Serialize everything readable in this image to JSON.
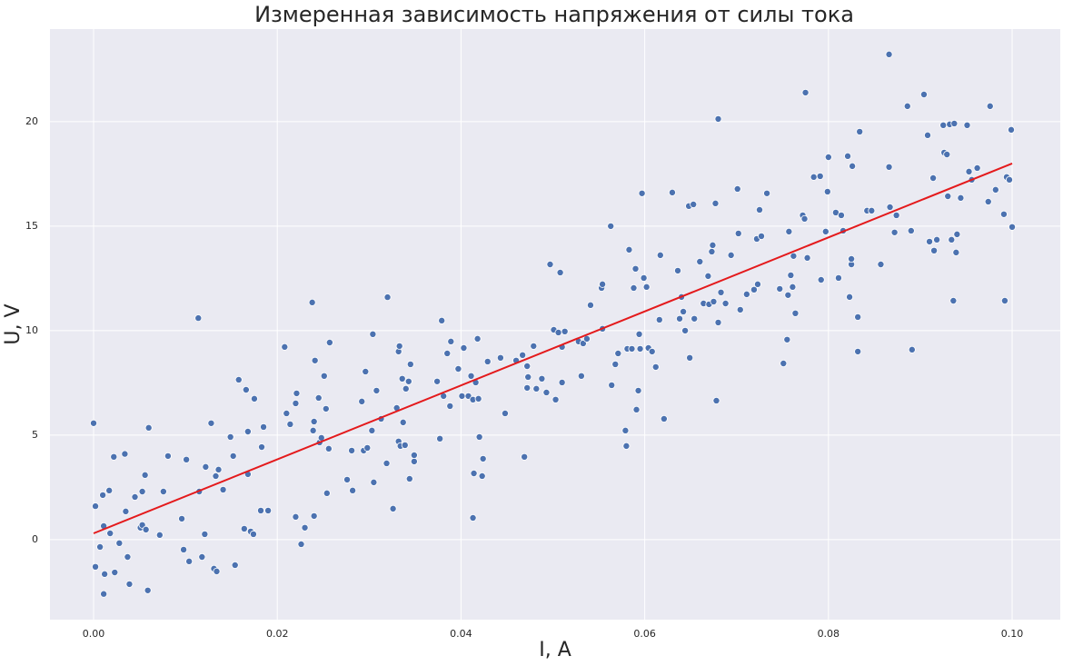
{
  "chart_data": {
    "type": "scatter",
    "title": "Измеренная зависимость напряжения от силы тока",
    "x_label": "I, A",
    "y_label": "U, V",
    "xlim": [
      -0.00475,
      0.10524
    ],
    "ylim": [
      -3.83,
      24.43
    ],
    "xticks": [
      {
        "value": 0,
        "label": "0.00"
      },
      {
        "value": 0.02,
        "label": "0.02"
      },
      {
        "value": 0.04,
        "label": "0.04"
      },
      {
        "value": 0.06,
        "label": "0.06"
      },
      {
        "value": 0.08,
        "label": "0.08"
      },
      {
        "value": 0.1,
        "label": "0.10"
      }
    ],
    "yticks": [
      0,
      5,
      10,
      15,
      20
    ],
    "grid": true,
    "series": [
      {
        "type": "scatter",
        "color": "#4c72b0",
        "x": [
          0,
          0.0002,
          0.0002,
          0.0007,
          0.001,
          0.0011,
          0.0012,
          0.0011,
          0.0017,
          0.0018,
          0.0022,
          0.0023,
          0.0028,
          0.0034,
          0.0035,
          0.0037,
          0.0039,
          0.0045,
          0.0051,
          0.0053,
          0.0053,
          0.0056,
          0.0057,
          0.0059,
          0.006,
          0.0072,
          0.0076,
          0.0081,
          0.0096,
          0.0098,
          0.0101,
          0.0104,
          0.0114,
          0.0115,
          0.0118,
          0.0121,
          0.0122,
          0.0128,
          0.0131,
          0.0133,
          0.0134,
          0.0136,
          0.0141,
          0.0149,
          0.0152,
          0.0154,
          0.0158,
          0.0164,
          0.0166,
          0.0168,
          0.0168,
          0.0171,
          0.0174,
          0.0175,
          0.0182,
          0.0183,
          0.0185,
          0.019,
          0.0208,
          0.021,
          0.0214,
          0.022,
          0.0221,
          0.022,
          0.0226,
          0.023,
          0.0238,
          0.0239,
          0.024,
          0.024,
          0.0241,
          0.0245,
          0.0246,
          0.0248,
          0.0251,
          0.0253,
          0.0254,
          0.0256,
          0.0257,
          0.0276,
          0.0281,
          0.0282,
          0.0292,
          0.0294,
          0.0296,
          0.0298,
          0.0303,
          0.0304,
          0.0305,
          0.0308,
          0.0313,
          0.0319,
          0.032,
          0.0326,
          0.033,
          0.0332,
          0.0332,
          0.0333,
          0.0334,
          0.0336,
          0.0337,
          0.0339,
          0.034,
          0.0343,
          0.0344,
          0.0345,
          0.0349,
          0.0349,
          0.0374,
          0.0377,
          0.0379,
          0.0381,
          0.0385,
          0.0388,
          0.0389,
          0.0397,
          0.0401,
          0.0403,
          0.0408,
          0.0411,
          0.0413,
          0.0413,
          0.0414,
          0.0416,
          0.0418,
          0.0419,
          0.042,
          0.0423,
          0.0424,
          0.0429,
          0.0443,
          0.0448,
          0.046,
          0.0467,
          0.0469,
          0.0472,
          0.0472,
          0.0473,
          0.0479,
          0.0482,
          0.0488,
          0.0493,
          0.0497,
          0.0501,
          0.0503,
          0.0506,
          0.0508,
          0.051,
          0.051,
          0.0513,
          0.0528,
          0.0531,
          0.0533,
          0.0537,
          0.0541,
          0.0553,
          0.0554,
          0.0554,
          0.0563,
          0.0564,
          0.0568,
          0.0571,
          0.0579,
          0.058,
          0.0581,
          0.0583,
          0.0586,
          0.0588,
          0.059,
          0.0591,
          0.0593,
          0.0594,
          0.0595,
          0.0597,
          0.0599,
          0.0602,
          0.0604,
          0.0608,
          0.0612,
          0.0616,
          0.0617,
          0.0621,
          0.063,
          0.0636,
          0.0638,
          0.064,
          0.0642,
          0.0644,
          0.0648,
          0.0649,
          0.0653,
          0.0654,
          0.066,
          0.0664,
          0.0669,
          0.067,
          0.0673,
          0.0674,
          0.0675,
          0.0677,
          0.0678,
          0.068,
          0.068,
          0.0683,
          0.0688,
          0.0694,
          0.0701,
          0.0702,
          0.0704,
          0.0711,
          0.0719,
          0.0722,
          0.0723,
          0.0725,
          0.0727,
          0.0733,
          0.0747,
          0.0751,
          0.0755,
          0.0756,
          0.0757,
          0.0759,
          0.0761,
          0.0762,
          0.0764,
          0.0772,
          0.0774,
          0.0775,
          0.0777,
          0.0784,
          0.0791,
          0.0792,
          0.0797,
          0.0799,
          0.08,
          0.0808,
          0.0811,
          0.0814,
          0.0816,
          0.0821,
          0.0823,
          0.0825,
          0.0825,
          0.0826,
          0.0832,
          0.0832,
          0.0834,
          0.0842,
          0.0847,
          0.0857,
          0.0866,
          0.0866,
          0.0867,
          0.0872,
          0.0874,
          0.0886,
          0.089,
          0.0891,
          0.0904,
          0.0908,
          0.091,
          0.0914,
          0.0915,
          0.0918,
          0.0925,
          0.0926,
          0.0929,
          0.093,
          0.0932,
          0.0934,
          0.0936,
          0.0937,
          0.0939,
          0.094,
          0.0944,
          0.0951,
          0.0953,
          0.0956,
          0.0962,
          0.0974,
          0.0976,
          0.0982,
          0.0991,
          0.0992,
          0.0994,
          0.0997,
          0.0999,
          0.1
        ],
        "values": [
          5.57,
          1.6,
          -1.3,
          -0.35,
          2.13,
          0.65,
          -1.65,
          -2.6,
          2.35,
          0.3,
          3.96,
          -1.57,
          -0.17,
          4.1,
          1.35,
          -0.83,
          -2.13,
          2.04,
          0.57,
          2.3,
          0.7,
          3.09,
          0.48,
          -2.43,
          5.35,
          0.22,
          2.3,
          4.0,
          1.0,
          -0.48,
          3.83,
          -1.04,
          10.6,
          2.3,
          -0.83,
          0.26,
          3.48,
          5.57,
          -1.39,
          3.04,
          -1.52,
          3.35,
          2.39,
          4.91,
          4.0,
          -1.22,
          7.65,
          0.52,
          7.17,
          3.13,
          5.17,
          0.39,
          0.26,
          6.74,
          1.39,
          4.43,
          5.39,
          1.39,
          9.22,
          6.04,
          5.52,
          6.52,
          7.0,
          1.09,
          -0.22,
          0.57,
          11.35,
          5.22,
          5.65,
          1.13,
          8.57,
          6.78,
          4.65,
          4.87,
          7.83,
          6.26,
          2.22,
          4.35,
          9.43,
          2.87,
          4.26,
          2.35,
          6.61,
          4.26,
          8.04,
          4.39,
          5.22,
          9.83,
          2.74,
          7.13,
          5.78,
          3.65,
          11.6,
          1.48,
          6.3,
          4.7,
          9.0,
          9.26,
          4.48,
          7.7,
          5.61,
          4.52,
          7.22,
          7.57,
          2.91,
          8.39,
          3.74,
          4.04,
          7.57,
          4.83,
          10.48,
          6.87,
          8.91,
          6.39,
          9.48,
          8.17,
          6.87,
          9.17,
          6.87,
          7.83,
          1.04,
          6.7,
          3.17,
          7.52,
          9.61,
          6.74,
          4.91,
          3.04,
          3.87,
          8.52,
          8.7,
          6.04,
          8.57,
          8.83,
          3.96,
          8.3,
          7.26,
          7.78,
          9.26,
          7.22,
          7.7,
          7.04,
          13.17,
          10.04,
          6.7,
          9.91,
          12.78,
          9.22,
          7.52,
          9.96,
          9.48,
          7.83,
          9.39,
          9.61,
          11.22,
          12.04,
          12.22,
          10.09,
          15.0,
          7.39,
          8.39,
          8.91,
          5.22,
          4.48,
          9.13,
          13.87,
          9.13,
          12.04,
          12.96,
          6.22,
          7.13,
          9.83,
          9.13,
          16.57,
          12.52,
          12.09,
          9.17,
          9.0,
          8.26,
          10.52,
          13.61,
          5.78,
          16.61,
          12.87,
          10.57,
          11.61,
          10.91,
          10.0,
          15.96,
          8.7,
          16.04,
          10.57,
          13.3,
          11.3,
          12.61,
          11.26,
          13.78,
          14.09,
          11.39,
          16.09,
          6.65,
          20.13,
          10.39,
          11.83,
          11.3,
          13.61,
          16.78,
          14.65,
          11.0,
          11.74,
          11.96,
          14.39,
          12.22,
          15.78,
          14.52,
          16.57,
          12.0,
          8.43,
          9.57,
          11.7,
          14.74,
          12.65,
          12.09,
          13.57,
          10.83,
          15.52,
          15.35,
          21.39,
          13.48,
          17.35,
          17.39,
          12.43,
          14.74,
          16.65,
          18.3,
          15.65,
          12.52,
          15.52,
          14.78,
          18.35,
          11.61,
          13.17,
          13.43,
          17.87,
          10.65,
          9.0,
          19.52,
          15.74,
          15.74,
          13.17,
          23.22,
          17.83,
          15.91,
          14.7,
          15.52,
          20.74,
          14.78,
          9.09,
          21.3,
          19.35,
          14.26,
          17.3,
          13.83,
          14.35,
          19.83,
          18.52,
          18.43,
          16.43,
          19.87,
          14.35,
          11.43,
          19.91,
          13.74,
          14.61,
          16.35,
          19.83,
          17.61,
          17.22,
          17.78,
          16.17,
          20.74,
          16.74,
          15.57,
          11.43,
          17.35,
          17.22,
          19.61,
          14.96
        ]
      },
      {
        "type": "line",
        "color": "#e41a1c",
        "x": [
          0,
          0.1
        ],
        "values": [
          0.3,
          18.0
        ]
      }
    ]
  }
}
